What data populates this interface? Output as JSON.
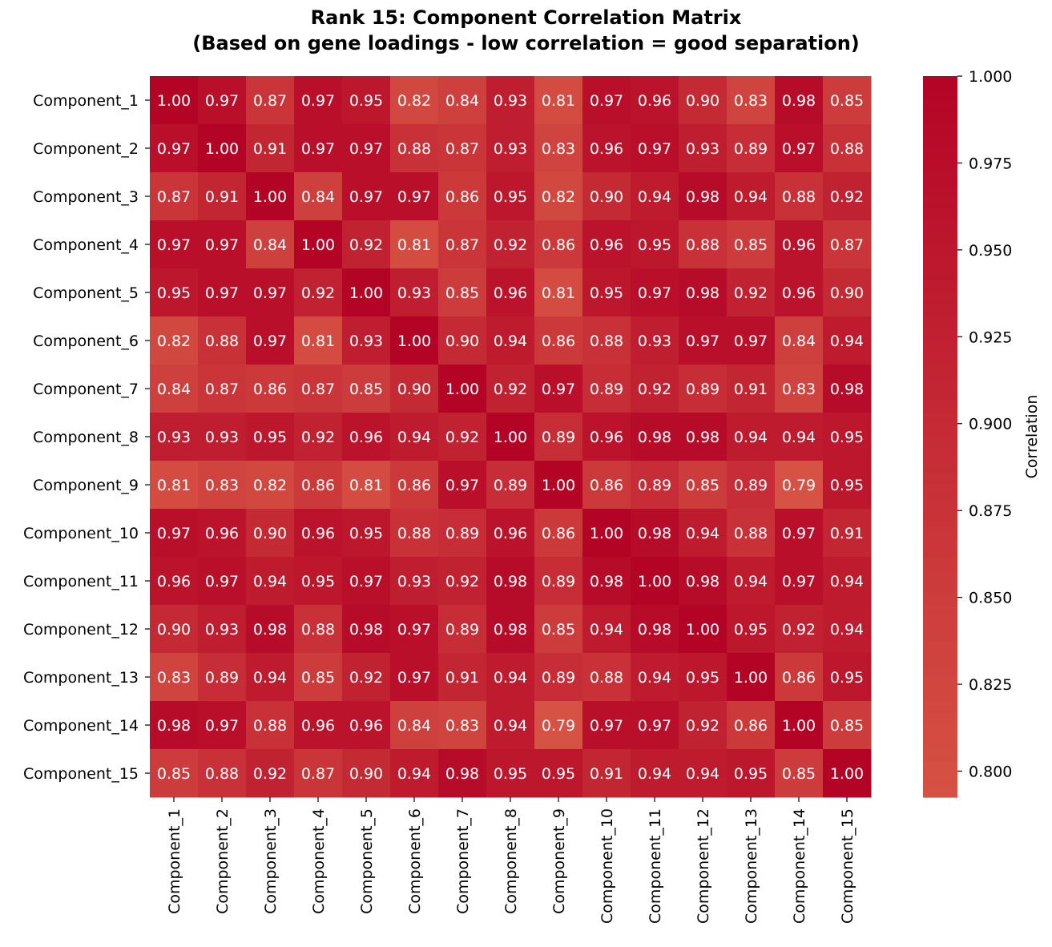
{
  "chart_data": {
    "type": "heatmap",
    "title_line1": "Rank 15: Component Correlation Matrix",
    "title_line2": "(Based on gene loadings - low correlation = good separation)",
    "labels": [
      "Component_1",
      "Component_2",
      "Component_3",
      "Component_4",
      "Component_5",
      "Component_6",
      "Component_7",
      "Component_8",
      "Component_9",
      "Component_10",
      "Component_11",
      "Component_12",
      "Component_13",
      "Component_14",
      "Component_15"
    ],
    "values": [
      [
        1.0,
        0.97,
        0.87,
        0.97,
        0.95,
        0.82,
        0.84,
        0.93,
        0.81,
        0.97,
        0.96,
        0.9,
        0.83,
        0.98,
        0.85
      ],
      [
        0.97,
        1.0,
        0.91,
        0.97,
        0.97,
        0.88,
        0.87,
        0.93,
        0.83,
        0.96,
        0.97,
        0.93,
        0.89,
        0.97,
        0.88
      ],
      [
        0.87,
        0.91,
        1.0,
        0.84,
        0.97,
        0.97,
        0.86,
        0.95,
        0.82,
        0.9,
        0.94,
        0.98,
        0.94,
        0.88,
        0.92
      ],
      [
        0.97,
        0.97,
        0.84,
        1.0,
        0.92,
        0.81,
        0.87,
        0.92,
        0.86,
        0.96,
        0.95,
        0.88,
        0.85,
        0.96,
        0.87
      ],
      [
        0.95,
        0.97,
        0.97,
        0.92,
        1.0,
        0.93,
        0.85,
        0.96,
        0.81,
        0.95,
        0.97,
        0.98,
        0.92,
        0.96,
        0.9
      ],
      [
        0.82,
        0.88,
        0.97,
        0.81,
        0.93,
        1.0,
        0.9,
        0.94,
        0.86,
        0.88,
        0.93,
        0.97,
        0.97,
        0.84,
        0.94
      ],
      [
        0.84,
        0.87,
        0.86,
        0.87,
        0.85,
        0.9,
        1.0,
        0.92,
        0.97,
        0.89,
        0.92,
        0.89,
        0.91,
        0.83,
        0.98
      ],
      [
        0.93,
        0.93,
        0.95,
        0.92,
        0.96,
        0.94,
        0.92,
        1.0,
        0.89,
        0.96,
        0.98,
        0.98,
        0.94,
        0.94,
        0.95
      ],
      [
        0.81,
        0.83,
        0.82,
        0.86,
        0.81,
        0.86,
        0.97,
        0.89,
        1.0,
        0.86,
        0.89,
        0.85,
        0.89,
        0.79,
        0.95
      ],
      [
        0.97,
        0.96,
        0.9,
        0.96,
        0.95,
        0.88,
        0.89,
        0.96,
        0.86,
        1.0,
        0.98,
        0.94,
        0.88,
        0.97,
        0.91
      ],
      [
        0.96,
        0.97,
        0.94,
        0.95,
        0.97,
        0.93,
        0.92,
        0.98,
        0.89,
        0.98,
        1.0,
        0.98,
        0.94,
        0.97,
        0.94
      ],
      [
        0.9,
        0.93,
        0.98,
        0.88,
        0.98,
        0.97,
        0.89,
        0.98,
        0.85,
        0.94,
        0.98,
        1.0,
        0.95,
        0.92,
        0.94
      ],
      [
        0.83,
        0.89,
        0.94,
        0.85,
        0.92,
        0.97,
        0.91,
        0.94,
        0.89,
        0.88,
        0.94,
        0.95,
        1.0,
        0.86,
        0.95
      ],
      [
        0.98,
        0.97,
        0.88,
        0.96,
        0.96,
        0.84,
        0.83,
        0.94,
        0.79,
        0.97,
        0.97,
        0.92,
        0.86,
        1.0,
        0.85
      ],
      [
        0.85,
        0.88,
        0.92,
        0.87,
        0.9,
        0.94,
        0.98,
        0.95,
        0.95,
        0.91,
        0.94,
        0.94,
        0.95,
        0.85,
        1.0
      ]
    ],
    "colorbar": {
      "label": "Correlation",
      "vmin": 0.7925,
      "vmax": 1.0,
      "ticks": [
        "1.000",
        "0.975",
        "0.950",
        "0.925",
        "0.900",
        "0.875",
        "0.850",
        "0.825",
        "0.800"
      ],
      "tick_values": [
        1.0,
        0.975,
        0.95,
        0.925,
        0.9,
        0.875,
        0.85,
        0.825,
        0.8
      ],
      "color_low": "#d65244",
      "color_high": "#b40426"
    },
    "grid": false,
    "legend": "colorbar-right"
  }
}
